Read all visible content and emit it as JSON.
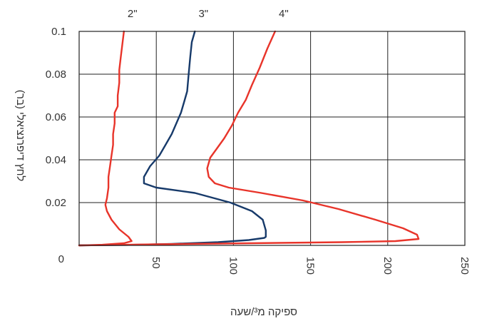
{
  "chart_data": {
    "type": "line",
    "xlabel": "ספיקה מ³/שעה",
    "ylabel": "לחץ דיפרנציאלי (בר)",
    "xlim": [
      0,
      250
    ],
    "ylim": [
      0,
      0.1
    ],
    "x_ticks": [
      "50",
      "100",
      "150",
      "200",
      "250"
    ],
    "y_ticks": [
      "0",
      "0.02",
      "0.04",
      "0.06",
      "0.08",
      "0.1"
    ],
    "grid": true,
    "series": [
      {
        "name": "2\"",
        "color": "#e8342a",
        "points": [
          [
            0,
            0.0
          ],
          [
            15,
            0.0003
          ],
          [
            29,
            0.001
          ],
          [
            34,
            0.002
          ],
          [
            32,
            0.004
          ],
          [
            26,
            0.0075
          ],
          [
            21,
            0.012
          ],
          [
            18,
            0.016
          ],
          [
            17,
            0.019
          ],
          [
            18,
            0.022
          ],
          [
            19,
            0.027
          ],
          [
            19,
            0.032
          ],
          [
            20,
            0.037
          ],
          [
            21,
            0.042
          ],
          [
            22,
            0.047
          ],
          [
            22,
            0.052
          ],
          [
            23,
            0.057
          ],
          [
            23,
            0.062
          ],
          [
            25,
            0.065
          ],
          [
            25,
            0.07
          ],
          [
            26,
            0.076
          ],
          [
            26,
            0.082
          ],
          [
            27,
            0.088
          ],
          [
            28,
            0.094
          ],
          [
            29,
            0.1
          ]
        ]
      },
      {
        "name": "3\"",
        "color": "#173a6a",
        "points": [
          [
            0,
            0.0
          ],
          [
            30,
            0.0002
          ],
          [
            60,
            0.0007
          ],
          [
            90,
            0.0015
          ],
          [
            110,
            0.0025
          ],
          [
            120,
            0.0035
          ],
          [
            121,
            0.004
          ],
          [
            121,
            0.007
          ],
          [
            119,
            0.012
          ],
          [
            112,
            0.016
          ],
          [
            98,
            0.02
          ],
          [
            75,
            0.0245
          ],
          [
            50,
            0.027
          ],
          [
            42,
            0.029
          ],
          [
            42,
            0.032
          ],
          [
            46,
            0.037
          ],
          [
            52,
            0.042
          ],
          [
            56,
            0.047
          ],
          [
            60,
            0.052
          ],
          [
            63,
            0.057
          ],
          [
            66,
            0.062
          ],
          [
            68,
            0.067
          ],
          [
            70,
            0.072
          ],
          [
            71,
            0.08
          ],
          [
            72,
            0.088
          ],
          [
            73,
            0.095
          ],
          [
            75,
            0.1
          ]
        ]
      },
      {
        "name": "4\"",
        "color": "#e8342a",
        "points": [
          [
            0,
            0.0
          ],
          [
            50,
            0.0005
          ],
          [
            110,
            0.001
          ],
          [
            170,
            0.0015
          ],
          [
            205,
            0.002
          ],
          [
            220,
            0.003
          ],
          [
            219,
            0.005
          ],
          [
            210,
            0.008
          ],
          [
            192,
            0.012
          ],
          [
            168,
            0.017
          ],
          [
            145,
            0.021
          ],
          [
            118,
            0.0245
          ],
          [
            97,
            0.027
          ],
          [
            88,
            0.029
          ],
          [
            84,
            0.032
          ],
          [
            83,
            0.036
          ],
          [
            85,
            0.041
          ],
          [
            89,
            0.045
          ],
          [
            94,
            0.05
          ],
          [
            99,
            0.056
          ],
          [
            103,
            0.062
          ],
          [
            108,
            0.068
          ],
          [
            112,
            0.075
          ],
          [
            117,
            0.083
          ],
          [
            122,
            0.092
          ],
          [
            127,
            0.1
          ]
        ]
      }
    ]
  }
}
